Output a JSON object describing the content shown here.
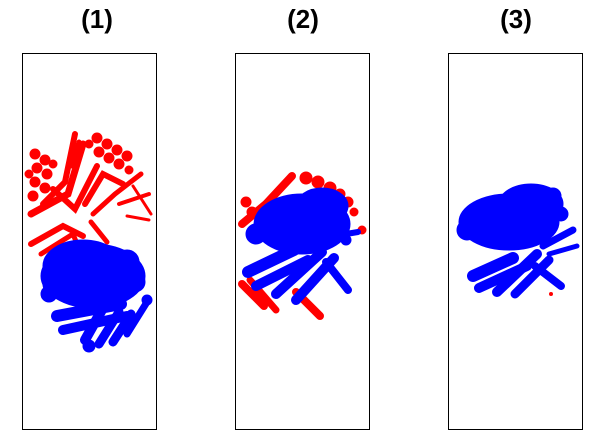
{
  "panels": [
    {
      "label": "(1)",
      "variant": "separated"
    },
    {
      "label": "(2)",
      "variant": "mixed"
    },
    {
      "label": "(3)",
      "variant": "blue-dominant"
    }
  ],
  "colors": {
    "red": "#ff0000",
    "blue": "#0000ff",
    "frame": "#000000",
    "background": "#ffffff"
  }
}
